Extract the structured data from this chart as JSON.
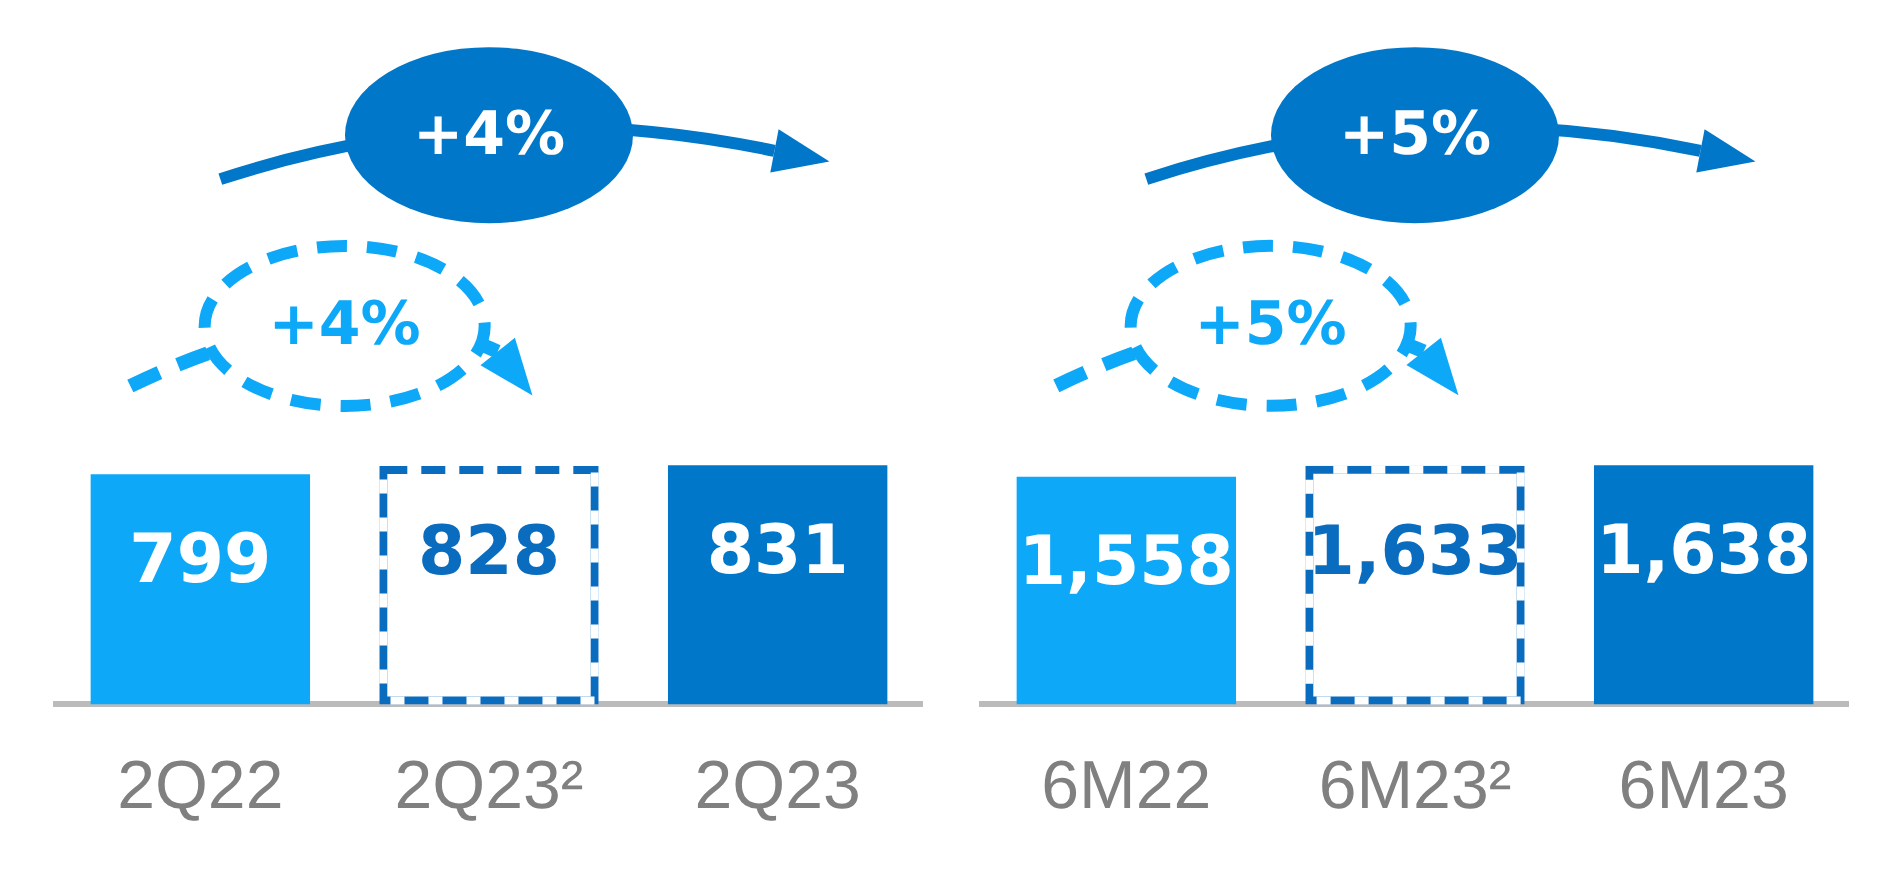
{
  "chart_data": [
    {
      "type": "bar",
      "categories": [
        "2Q22",
        "2Q23²",
        "2Q23"
      ],
      "data_labels": true,
      "annotations": [
        "+4%",
        "+4%"
      ],
      "series": [
        {
          "colors": [
            "#0ea8f8",
            null,
            "#0077c8"
          ],
          "values": [
            799,
            null,
            831
          ]
        },
        {
          "color": "#0a6cbf",
          "line_style": "dashed",
          "values": [
            null,
            828,
            null
          ]
        }
      ]
    },
    {
      "type": "bar",
      "categories": [
        "6M22",
        "6M23²",
        "6M23"
      ],
      "annotations": [
        "+5%",
        "+5%"
      ],
      "series": [
        {
          "colors": [
            "#0ea8f8",
            null,
            "#0077c8"
          ],
          "values": [
            1558,
            null,
            1638
          ],
          "value_labels": [
            "1,558",
            null,
            "1,638"
          ]
        },
        {
          "color": "#0a6cbf",
          "line_style": "dashed",
          "values": [
            null,
            1633,
            null
          ],
          "value_labels": [
            null,
            "1,633",
            null
          ]
        }
      ]
    }
  ]
}
